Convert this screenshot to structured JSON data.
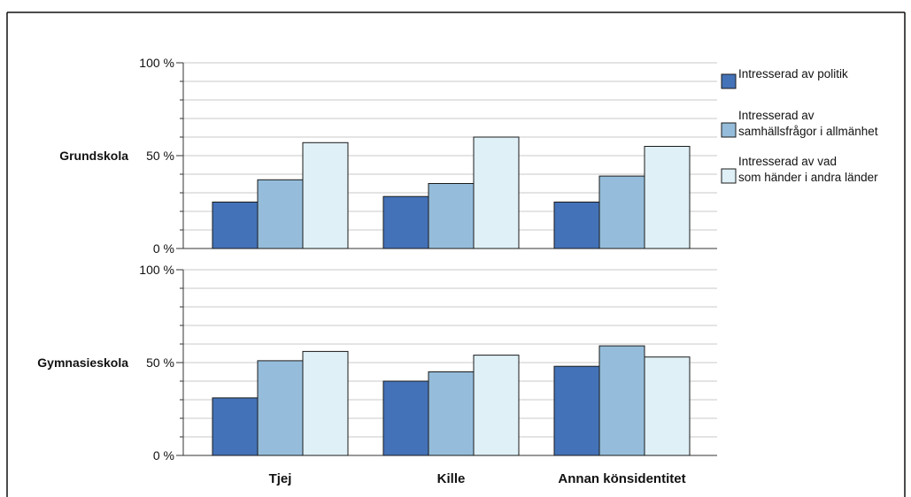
{
  "chart_data": {
    "type": "bar",
    "categories": [
      "Tjej",
      "Kille",
      "Annan könsidentitet"
    ],
    "legend_position": "right",
    "colors": [
      "#4472b8",
      "#95bddb",
      "#dff0f7"
    ],
    "series_labels": [
      [
        "Intresserad av politik"
      ],
      [
        "Intresserad av",
        "samhällsfrågor i allmänhet"
      ],
      [
        "Intresserad av vad",
        "som händer i andra länder"
      ]
    ],
    "ylim": [
      0,
      100
    ],
    "yticks": [
      "0 %",
      "50 %",
      "100 %"
    ],
    "grid": true,
    "panels": [
      {
        "label": "Grundskola",
        "series": [
          {
            "values": [
              25,
              28,
              25
            ]
          },
          {
            "values": [
              37,
              35,
              39
            ]
          },
          {
            "values": [
              57,
              60,
              55
            ]
          }
        ]
      },
      {
        "label": "Gymnasieskola",
        "series": [
          {
            "values": [
              31,
              40,
              48
            ]
          },
          {
            "values": [
              51,
              45,
              59
            ]
          },
          {
            "values": [
              56,
              54,
              53
            ]
          }
        ]
      }
    ]
  }
}
